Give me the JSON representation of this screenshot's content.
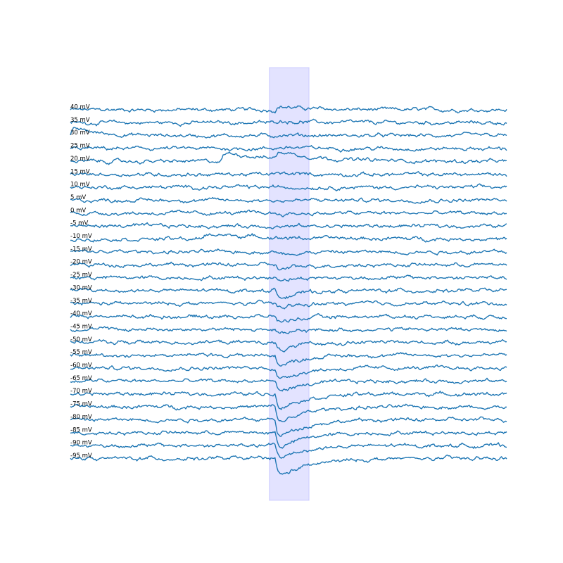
{
  "chart_data": {
    "type": "line",
    "title": "",
    "xlabel": "",
    "ylabel": "",
    "grid": false,
    "legend": "none",
    "x_range": [
      0,
      1
    ],
    "highlight_window": [
      0.456,
      0.547
    ],
    "colors": {
      "trace": "#1f77b4",
      "highlight": "#0000ff"
    },
    "series": [
      {
        "label": "40 mV",
        "peak": 0.3,
        "tau": 0.06,
        "events": []
      },
      {
        "label": "35 mV",
        "peak": 0.18,
        "tau": 0.06,
        "events": []
      },
      {
        "label": "30 mV",
        "peak": 0.1,
        "tau": 0.06,
        "events": [
          {
            "t": 0.0,
            "amp": 0.6,
            "tau": 0.06
          }
        ]
      },
      {
        "label": "25 mV",
        "peak": 0.12,
        "tau": 0.06,
        "events": []
      },
      {
        "label": "20 mV",
        "peak": 0.55,
        "tau": 0.09,
        "events": [
          {
            "t": 0.345,
            "amp": 0.7,
            "tau": 0.12
          }
        ]
      },
      {
        "label": "15 mV",
        "peak": 0.06,
        "tau": 0.05,
        "events": []
      },
      {
        "label": "10 mV",
        "peak": 0.0,
        "tau": 0.05,
        "events": []
      },
      {
        "label": "5 mV",
        "peak": -0.05,
        "tau": 0.05,
        "events": []
      },
      {
        "label": "0 mV",
        "peak": -0.1,
        "tau": 0.05,
        "events": []
      },
      {
        "label": "-5 mV",
        "peak": -0.04,
        "tau": 0.05,
        "events": []
      },
      {
        "label": "-10 mV",
        "peak": -0.06,
        "tau": 0.05,
        "events": [
          {
            "t": 0.305,
            "amp": 0.38,
            "tau": 0.15
          }
        ]
      },
      {
        "label": "-15 mV",
        "peak": -0.2,
        "tau": 0.05,
        "events": []
      },
      {
        "label": "-20 mV",
        "peak": -0.45,
        "tau": 0.05,
        "events": []
      },
      {
        "label": "-25 mV",
        "peak": -0.12,
        "tau": 0.05,
        "events": []
      },
      {
        "label": "-30 mV",
        "peak": -0.6,
        "tau": 0.05,
        "events": []
      },
      {
        "label": "-35 mV",
        "peak": -0.35,
        "tau": 0.05,
        "events": []
      },
      {
        "label": "-40 mV",
        "peak": -0.5,
        "tau": 0.05,
        "events": []
      },
      {
        "label": "-45 mV",
        "peak": -0.45,
        "tau": 0.05,
        "events": []
      },
      {
        "label": "-50 mV",
        "peak": -0.8,
        "tau": 0.05,
        "events": []
      },
      {
        "label": "-55 mV",
        "peak": -1.0,
        "tau": 0.05,
        "events": []
      },
      {
        "label": "-60 mV",
        "peak": -1.05,
        "tau": 0.05,
        "events": []
      },
      {
        "label": "-65 mV",
        "peak": -0.9,
        "tau": 0.06,
        "events": []
      },
      {
        "label": "-70 mV",
        "peak": -1.2,
        "tau": 0.06,
        "events": []
      },
      {
        "label": "-75 mV",
        "peak": -1.4,
        "tau": 0.06,
        "events": []
      },
      {
        "label": "-80 mV",
        "peak": -1.5,
        "tau": 0.06,
        "events": []
      },
      {
        "label": "-85 mV",
        "peak": -1.3,
        "tau": 0.06,
        "events": []
      },
      {
        "label": "-90 mV",
        "peak": -1.1,
        "tau": 0.06,
        "events": []
      },
      {
        "label": "-95 mV",
        "peak": -1.5,
        "tau": 0.07,
        "events": []
      }
    ]
  }
}
